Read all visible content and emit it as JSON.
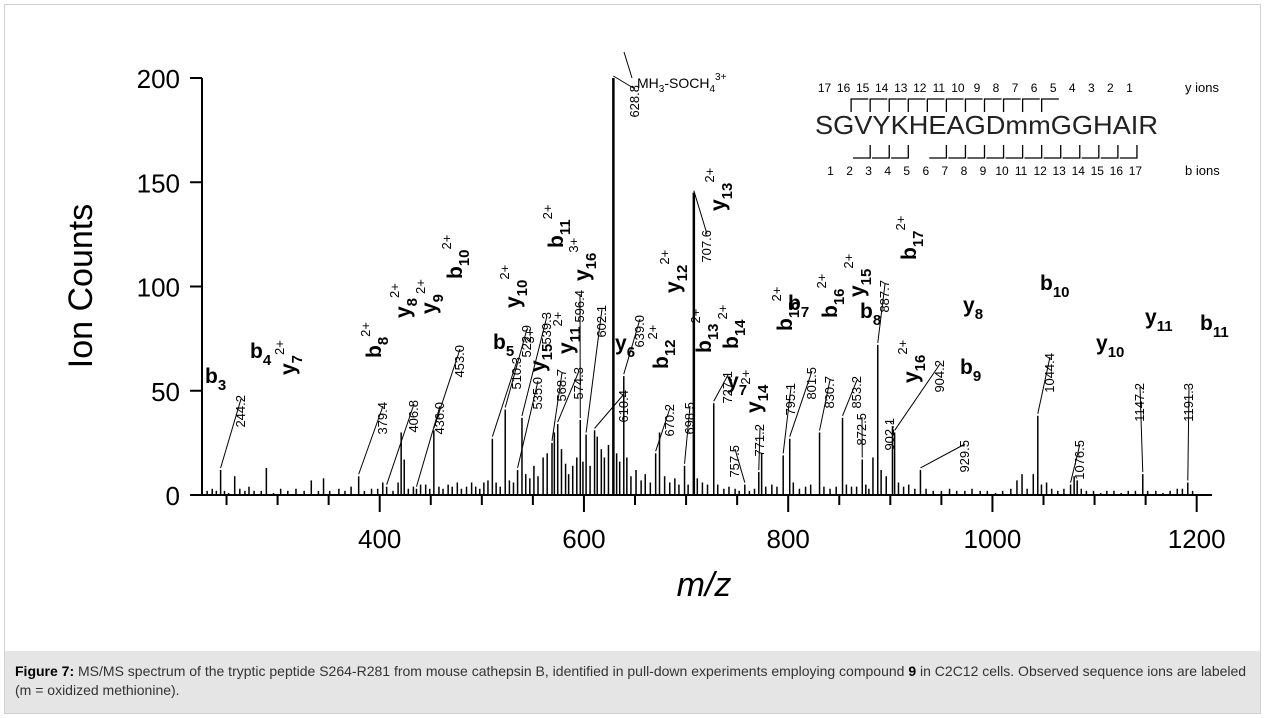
{
  "chart_data": {
    "type": "bar",
    "xlabel": "m/z",
    "ylabel": "Ion Counts",
    "xlim": [
      225,
      1215
    ],
    "ylim": [
      0,
      200
    ],
    "x_ticks": [
      400,
      600,
      800,
      1000,
      1200
    ],
    "y_ticks": [
      0,
      50,
      100,
      150,
      200
    ],
    "peaks": [
      [
        231,
        2
      ],
      [
        236,
        3
      ],
      [
        240,
        2
      ],
      [
        244.2,
        12
      ],
      [
        248,
        2
      ],
      [
        252,
        1
      ],
      [
        258,
        9
      ],
      [
        263,
        3
      ],
      [
        268,
        2
      ],
      [
        272,
        4
      ],
      [
        277,
        2
      ],
      [
        284,
        2
      ],
      [
        289,
        13
      ],
      [
        296,
        1
      ],
      [
        303,
        3
      ],
      [
        310,
        2
      ],
      [
        318,
        3
      ],
      [
        326,
        2
      ],
      [
        333,
        7
      ],
      [
        340,
        2
      ],
      [
        345,
        8
      ],
      [
        351,
        2
      ],
      [
        360,
        3
      ],
      [
        366,
        2
      ],
      [
        372,
        4
      ],
      [
        379.4,
        9
      ],
      [
        385,
        2
      ],
      [
        392,
        3
      ],
      [
        398,
        3
      ],
      [
        403,
        6
      ],
      [
        406.8,
        4
      ],
      [
        413,
        2
      ],
      [
        418,
        6
      ],
      [
        421,
        30
      ],
      [
        424,
        17
      ],
      [
        428,
        3
      ],
      [
        433,
        4
      ],
      [
        436.0,
        3
      ],
      [
        440,
        5
      ],
      [
        445,
        5
      ],
      [
        449,
        3
      ],
      [
        453.0,
        31
      ],
      [
        458,
        4
      ],
      [
        462,
        3
      ],
      [
        467,
        5
      ],
      [
        471,
        4
      ],
      [
        476,
        6
      ],
      [
        480,
        3
      ],
      [
        485,
        4
      ],
      [
        490,
        6
      ],
      [
        494,
        4
      ],
      [
        498,
        3
      ],
      [
        502,
        6
      ],
      [
        506,
        7
      ],
      [
        510.3,
        27
      ],
      [
        514,
        6
      ],
      [
        518,
        4
      ],
      [
        522.9,
        41
      ],
      [
        527,
        7
      ],
      [
        531,
        6
      ],
      [
        535.0,
        12
      ],
      [
        539.3,
        37
      ],
      [
        543,
        10
      ],
      [
        547,
        8
      ],
      [
        551,
        14
      ],
      [
        555,
        9
      ],
      [
        560,
        18
      ],
      [
        564,
        20
      ],
      [
        568.7,
        25
      ],
      [
        571,
        30
      ],
      [
        574.3,
        34
      ],
      [
        578,
        22
      ],
      [
        582,
        15
      ],
      [
        585,
        10
      ],
      [
        589,
        14
      ],
      [
        593,
        18
      ],
      [
        596.4,
        36
      ],
      [
        599,
        16
      ],
      [
        602.1,
        29
      ],
      [
        606,
        14
      ],
      [
        610.4,
        31
      ],
      [
        613,
        28
      ],
      [
        617,
        22
      ],
      [
        620,
        18
      ],
      [
        624,
        24
      ],
      [
        628.8,
        200
      ],
      [
        632,
        20
      ],
      [
        635,
        16
      ],
      [
        639.0,
        57
      ],
      [
        642,
        18
      ],
      [
        646,
        9
      ],
      [
        651,
        12
      ],
      [
        656,
        7
      ],
      [
        660,
        10
      ],
      [
        665,
        6
      ],
      [
        670.2,
        20
      ],
      [
        674,
        30
      ],
      [
        679,
        9
      ],
      [
        684,
        6
      ],
      [
        689,
        8
      ],
      [
        693,
        5
      ],
      [
        698.5,
        14
      ],
      [
        702,
        5
      ],
      [
        707.6,
        145
      ],
      [
        711,
        8
      ],
      [
        716,
        6
      ],
      [
        721,
        5
      ],
      [
        727.1,
        44
      ],
      [
        731,
        5
      ],
      [
        737,
        3
      ],
      [
        742,
        4
      ],
      [
        748,
        3
      ],
      [
        752,
        2
      ],
      [
        757.5,
        5
      ],
      [
        762,
        2
      ],
      [
        767,
        3
      ],
      [
        771.2,
        11
      ],
      [
        774,
        20
      ],
      [
        778,
        4
      ],
      [
        784,
        5
      ],
      [
        789,
        4
      ],
      [
        795.1,
        19
      ],
      [
        801.5,
        27
      ],
      [
        805,
        6
      ],
      [
        811,
        3
      ],
      [
        817,
        4
      ],
      [
        822,
        5
      ],
      [
        830.7,
        30
      ],
      [
        835,
        4
      ],
      [
        841,
        3
      ],
      [
        847,
        4
      ],
      [
        853.2,
        37
      ],
      [
        857,
        5
      ],
      [
        862,
        4
      ],
      [
        867,
        4
      ],
      [
        872.5,
        17
      ],
      [
        876,
        5
      ],
      [
        879,
        3
      ],
      [
        883,
        18
      ],
      [
        887.7,
        72
      ],
      [
        891,
        12
      ],
      [
        896,
        9
      ],
      [
        902.1,
        33
      ],
      [
        904.2,
        30
      ],
      [
        908,
        6
      ],
      [
        913,
        4
      ],
      [
        918,
        5
      ],
      [
        924,
        3
      ],
      [
        929.5,
        12
      ],
      [
        935,
        3
      ],
      [
        942,
        2
      ],
      [
        950,
        2
      ],
      [
        958,
        3
      ],
      [
        965,
        2
      ],
      [
        973,
        2
      ],
      [
        980,
        3
      ],
      [
        988,
        2
      ],
      [
        995,
        2
      ],
      [
        1003,
        1
      ],
      [
        1010,
        2
      ],
      [
        1018,
        3
      ],
      [
        1024,
        7
      ],
      [
        1029,
        10
      ],
      [
        1034,
        3
      ],
      [
        1040,
        10
      ],
      [
        1044.4,
        38
      ],
      [
        1048,
        5
      ],
      [
        1053,
        6
      ],
      [
        1058,
        3
      ],
      [
        1064,
        2
      ],
      [
        1070,
        3
      ],
      [
        1076.5,
        5
      ],
      [
        1080,
        9
      ],
      [
        1083,
        7
      ],
      [
        1087,
        3
      ],
      [
        1092,
        2
      ],
      [
        1099,
        2
      ],
      [
        1106,
        1
      ],
      [
        1112,
        2
      ],
      [
        1119,
        2
      ],
      [
        1126,
        1
      ],
      [
        1133,
        2
      ],
      [
        1140,
        2
      ],
      [
        1147.2,
        10
      ],
      [
        1152,
        2
      ],
      [
        1160,
        2
      ],
      [
        1167,
        1
      ],
      [
        1174,
        2
      ],
      [
        1181,
        3
      ],
      [
        1186,
        3
      ],
      [
        1191.3,
        6
      ],
      [
        1196,
        2
      ]
    ],
    "peak_labels": [
      {
        "text": "244.2",
        "x": 244.2,
        "yp": 12
      },
      {
        "text": "379.4",
        "x": 379.4,
        "yp": 9
      },
      {
        "text": "406.8",
        "x": 406.8,
        "yp": 4
      },
      {
        "text": "436.0",
        "x": 436.0,
        "yp": 3
      },
      {
        "text": "453.0",
        "x": 453.0,
        "yp": 31
      },
      {
        "text": "510.3",
        "x": 510.3,
        "yp": 27
      },
      {
        "text": "522.9",
        "x": 522.9,
        "yp": 41
      },
      {
        "text": "535.0",
        "x": 535.0,
        "yp": 12
      },
      {
        "text": "539.3",
        "x": 539.3,
        "yp": 37
      },
      {
        "text": "568.7",
        "x": 568.7,
        "yp": 25
      },
      {
        "text": "574.3",
        "x": 574.3,
        "yp": 34
      },
      {
        "text": "596.4",
        "x": 596.4,
        "yp": 36
      },
      {
        "text": "602.1",
        "x": 602.1,
        "yp": 29
      },
      {
        "text": "610.4",
        "x": 610.4,
        "yp": 31
      },
      {
        "text": "628.8",
        "x": 628.8,
        "yp": 200
      },
      {
        "text": "639.0",
        "x": 639.0,
        "yp": 57
      },
      {
        "text": "670.2",
        "x": 670.2,
        "yp": 20
      },
      {
        "text": "698.5",
        "x": 698.5,
        "yp": 14
      },
      {
        "text": "707.6",
        "x": 707.6,
        "yp": 145
      },
      {
        "text": "727.1",
        "x": 727.1,
        "yp": 44
      },
      {
        "text": "757.5",
        "x": 757.5,
        "yp": 5
      },
      {
        "text": "771.2",
        "x": 771.2,
        "yp": 11
      },
      {
        "text": "795.1",
        "x": 795.1,
        "yp": 19
      },
      {
        "text": "801.5",
        "x": 801.5,
        "yp": 27
      },
      {
        "text": "830.7",
        "x": 830.7,
        "yp": 30
      },
      {
        "text": "853.2",
        "x": 853.2,
        "yp": 37
      },
      {
        "text": "872.5",
        "x": 872.5,
        "yp": 17
      },
      {
        "text": "887.7",
        "x": 887.7,
        "yp": 72
      },
      {
        "text": "902.1",
        "x": 902.1,
        "yp": 33
      },
      {
        "text": "904.2",
        "x": 904.2,
        "yp": 30
      },
      {
        "text": "929.5",
        "x": 929.5,
        "yp": 12
      },
      {
        "text": "1044.4",
        "x": 1044.4,
        "yp": 38
      },
      {
        "text": "1076.5",
        "x": 1076.5,
        "yp": 5
      },
      {
        "text": "1147.2",
        "x": 1147.2,
        "yp": 10
      },
      {
        "text": "1191.3",
        "x": 1191.3,
        "yp": 6
      }
    ],
    "ion_labels": [
      {
        "ion": "b",
        "num": "3",
        "charge": ""
      },
      {
        "ion": "y",
        "num": "7",
        "charge": "2+"
      },
      {
        "ion": "b",
        "num": "4",
        "charge": ""
      },
      {
        "ion": "b",
        "num": "8",
        "charge": "2+"
      },
      {
        "ion": "y",
        "num": "8",
        "charge": "2+"
      },
      {
        "ion": "y",
        "num": "9",
        "charge": "2+"
      },
      {
        "ion": "b",
        "num": "10",
        "charge": "2+"
      },
      {
        "ion": "b",
        "num": "5",
        "charge": ""
      },
      {
        "ion": "y",
        "num": "10",
        "charge": "2+"
      },
      {
        "ion": "y",
        "num": "15",
        "charge": "3+"
      },
      {
        "ion": "y",
        "num": "11",
        "charge": "2+"
      },
      {
        "ion": "b",
        "num": "11",
        "charge": "2+"
      },
      {
        "ion": "y",
        "num": "16",
        "charge": "3+"
      },
      {
        "ion": "y",
        "num": "6",
        "charge": ""
      },
      {
        "ion": "y",
        "num": "12",
        "charge": "2+"
      },
      {
        "ion": "b",
        "num": "12",
        "charge": "2+"
      },
      {
        "ion": "b",
        "num": "13",
        "charge": "2+"
      },
      {
        "ion": "y",
        "num": "13",
        "charge": "2+"
      },
      {
        "ion": "b",
        "num": "14",
        "charge": "2+"
      },
      {
        "ion": "y",
        "num": "7",
        "charge": ""
      },
      {
        "ion": "y",
        "num": "14",
        "charge": "2+"
      },
      {
        "ion": "b",
        "num": "15",
        "charge": "2+"
      },
      {
        "ion": "b",
        "num": "7",
        "charge": ""
      },
      {
        "ion": "b",
        "num": "16",
        "charge": "2+"
      },
      {
        "ion": "y",
        "num": "15",
        "charge": "2+"
      },
      {
        "ion": "b",
        "num": "17",
        "charge": "2+"
      },
      {
        "ion": "b",
        "num": "8",
        "charge": ""
      },
      {
        "ion": "y",
        "num": "16",
        "charge": "2+"
      },
      {
        "ion": "y",
        "num": "8",
        "charge": ""
      },
      {
        "ion": "b",
        "num": "9",
        "charge": ""
      },
      {
        "ion": "b",
        "num": "10",
        "charge": ""
      },
      {
        "ion": "y",
        "num": "10",
        "charge": ""
      },
      {
        "ion": "y",
        "num": "11",
        "charge": ""
      },
      {
        "ion": "b",
        "num": "11",
        "charge": ""
      }
    ],
    "precursor_label": {
      "base": "MH",
      "sub1": "3",
      "mid": "-SOCH",
      "sub2": "4",
      "sup": "3+"
    },
    "sequence_map": {
      "sequence": "SGVYKHEAGDmmGGHAIR",
      "y_numbers": [
        "17",
        "16",
        "15",
        "14",
        "13",
        "12",
        "11",
        "10",
        "9",
        "8",
        "7",
        "6",
        "5",
        "4",
        "3",
        "2",
        "1"
      ],
      "b_numbers": [
        "1",
        "2",
        "3",
        "4",
        "5",
        "6",
        "7",
        "8",
        "9",
        "10",
        "11",
        "12",
        "13",
        "14",
        "15",
        "16",
        "17"
      ],
      "y_label": "y ions",
      "b_label": "b ions"
    }
  },
  "caption": {
    "label": "Figure 7:",
    "text_part1": " MS/MS spectrum of the tryptic peptide S264-R281 from mouse cathepsin B, identified in pull-down experiments employing compound ",
    "compound": "9",
    "text_part2": " in C2C12 cells. Observed sequence ions are labeled (m = oxidized methionine)."
  }
}
